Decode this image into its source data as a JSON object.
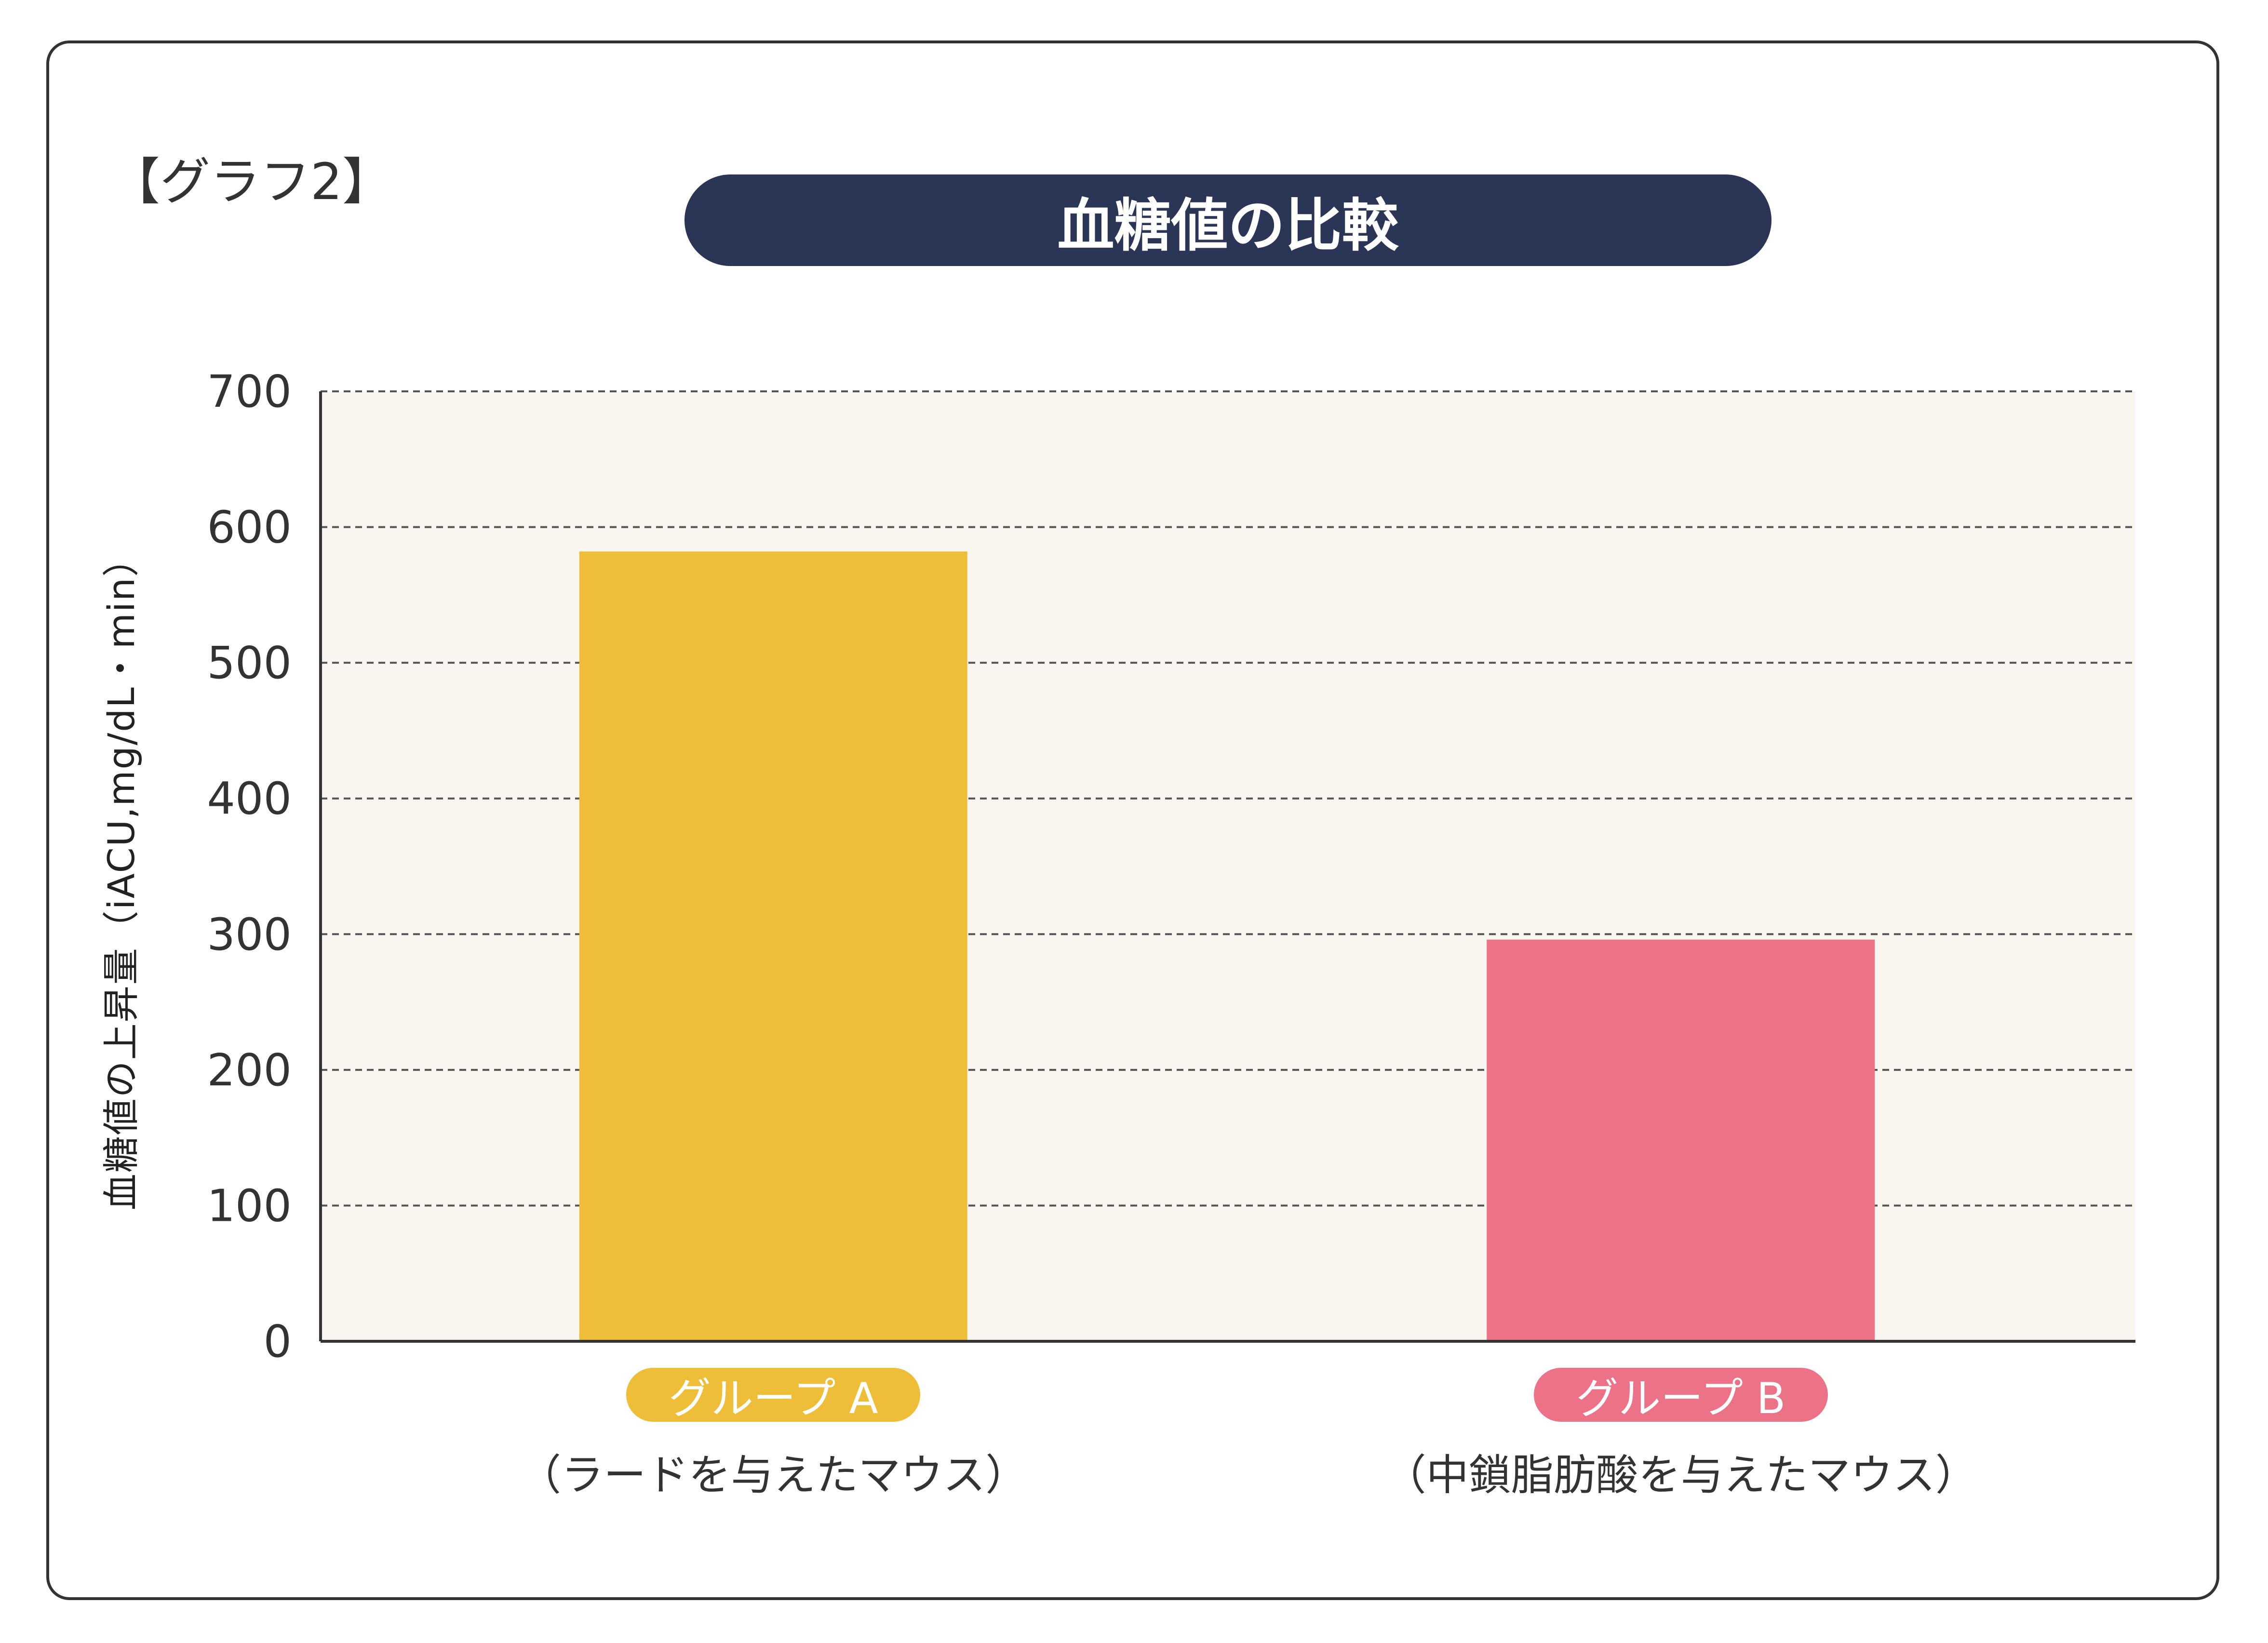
{
  "graph_label": "【グラフ2】",
  "chart_data": {
    "type": "bar",
    "title": "血糖値の比較",
    "ylabel": "血糖値の上昇量（iACU,mg/dL・min）",
    "ylim": [
      0,
      700
    ],
    "yticks": [
      0,
      100,
      200,
      300,
      400,
      500,
      600,
      700
    ],
    "grid": true,
    "categories": [
      {
        "label": "グループ A",
        "sublabel": "（ラードを与えたマウス）",
        "color": "#efbe39"
      },
      {
        "label": "グループ B",
        "sublabel": "（中鎖脂肪酸を与えたマウス）",
        "color": "#ec7287"
      }
    ],
    "values": [
      582,
      296
    ],
    "colors": {
      "plot_background": "#f9f6f0",
      "title_background": "#2b3556",
      "axis": "#333333"
    }
  }
}
